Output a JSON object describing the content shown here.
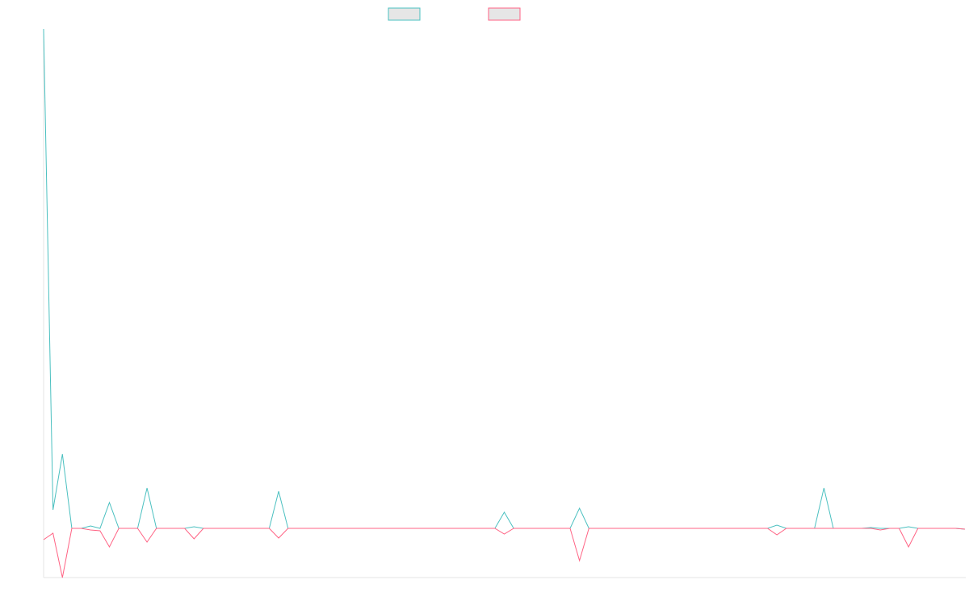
{
  "chart_data": {
    "type": "line",
    "categories": [
      null,
      null,
      null,
      null,
      null,
      null,
      null,
      null,
      null,
      null,
      null,
      null,
      null,
      null,
      null,
      null,
      null,
      null,
      null,
      null,
      null,
      null,
      null,
      null,
      null,
      null,
      null,
      null,
      null,
      null,
      null,
      null,
      null,
      null,
      null,
      null,
      null,
      null,
      null,
      null,
      null,
      null,
      null,
      null,
      null,
      null,
      null,
      null,
      null,
      null,
      null,
      null,
      null,
      null,
      null,
      null,
      null,
      null,
      null,
      null,
      null,
      null,
      null,
      null,
      null,
      null,
      null,
      null,
      null,
      null,
      null,
      null,
      null,
      null,
      null,
      null,
      null,
      null,
      null,
      null,
      null,
      null,
      null,
      null,
      null,
      null,
      null,
      null,
      null,
      null,
      null,
      null,
      null,
      null,
      null,
      null,
      null,
      null,
      null
    ],
    "series": [
      {
        "color": "#4bc0c0",
        "values": [
          619,
          23,
          92,
          0,
          0,
          3,
          0,
          32,
          0,
          0,
          0,
          50,
          0,
          0,
          0,
          0,
          2,
          0,
          0,
          0,
          0,
          0,
          0,
          0,
          0,
          46,
          0,
          0,
          0,
          0,
          0,
          0,
          0,
          0,
          0,
          0,
          0,
          0,
          0,
          0,
          0,
          0,
          0,
          0,
          0,
          0,
          0,
          0,
          0,
          20,
          0,
          0,
          0,
          0,
          0,
          0,
          0,
          25,
          0,
          0,
          0,
          0,
          0,
          0,
          0,
          0,
          0,
          0,
          0,
          0,
          0,
          0,
          0,
          0,
          0,
          0,
          0,
          0,
          4,
          0,
          0,
          0,
          0,
          50,
          0,
          0,
          0,
          0,
          1,
          0,
          0,
          0,
          2,
          0,
          0,
          0,
          0,
          0,
          -1
        ]
      },
      {
        "color": "#ff6384",
        "values": [
          -14,
          -6,
          -61,
          0,
          0,
          -2,
          -3,
          -23,
          0,
          0,
          0,
          -17,
          0,
          0,
          0,
          0,
          -13,
          0,
          0,
          0,
          0,
          0,
          0,
          0,
          0,
          -12,
          0,
          0,
          0,
          0,
          0,
          0,
          0,
          0,
          0,
          0,
          0,
          0,
          0,
          0,
          0,
          0,
          0,
          0,
          0,
          0,
          0,
          0,
          0,
          -7,
          0,
          0,
          0,
          0,
          0,
          0,
          0,
          -40,
          0,
          0,
          0,
          0,
          0,
          0,
          0,
          0,
          0,
          0,
          0,
          0,
          0,
          0,
          0,
          0,
          0,
          0,
          0,
          0,
          -8,
          0,
          0,
          0,
          0,
          0,
          0,
          0,
          0,
          0,
          0,
          -2,
          0,
          0,
          -23,
          0,
          0,
          0,
          0,
          0,
          -1
        ]
      }
    ],
    "ylim": [
      -61,
      619
    ]
  }
}
